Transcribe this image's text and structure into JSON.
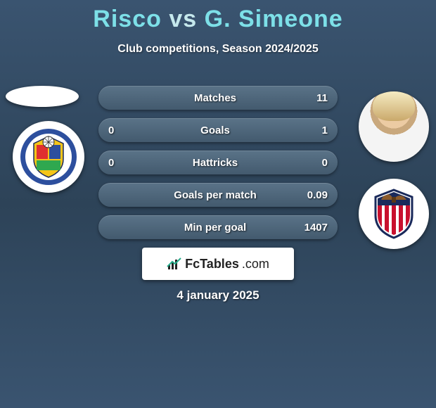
{
  "title": {
    "player1": "Risco",
    "vs": "vs",
    "player2": "G. Simeone"
  },
  "subtitle": "Club competitions, Season 2024/2025",
  "rows": [
    {
      "label": "Matches",
      "left": "",
      "right": "11",
      "hide_left": true
    },
    {
      "label": "Goals",
      "left": "0",
      "right": "1",
      "hide_left": false
    },
    {
      "label": "Hattricks",
      "left": "0",
      "right": "0",
      "hide_left": false
    },
    {
      "label": "Goals per match",
      "left": "",
      "right": "0.09",
      "hide_left": true
    },
    {
      "label": "Min per goal",
      "left": "",
      "right": "1407",
      "hide_left": true
    }
  ],
  "brand": {
    "name": "FcTables",
    "suffix": ".com"
  },
  "date": "4 january 2025",
  "colors": {
    "accent": "#7de0e8",
    "pill_top": "#5a7388",
    "pill_bottom": "#435a6e",
    "bg_top": "#3a5470",
    "bg_mid": "#2d4358"
  },
  "clubs": {
    "left": {
      "name": "Getafe CF",
      "ring": "#2d4f9e",
      "shield_colors": [
        "#e03030",
        "#f5c518",
        "#2d4f9e"
      ]
    },
    "right": {
      "name": "Atletico Madrid",
      "stripes": [
        "#c8102e",
        "#ffffff"
      ],
      "ring": "#1a2a5b"
    }
  }
}
